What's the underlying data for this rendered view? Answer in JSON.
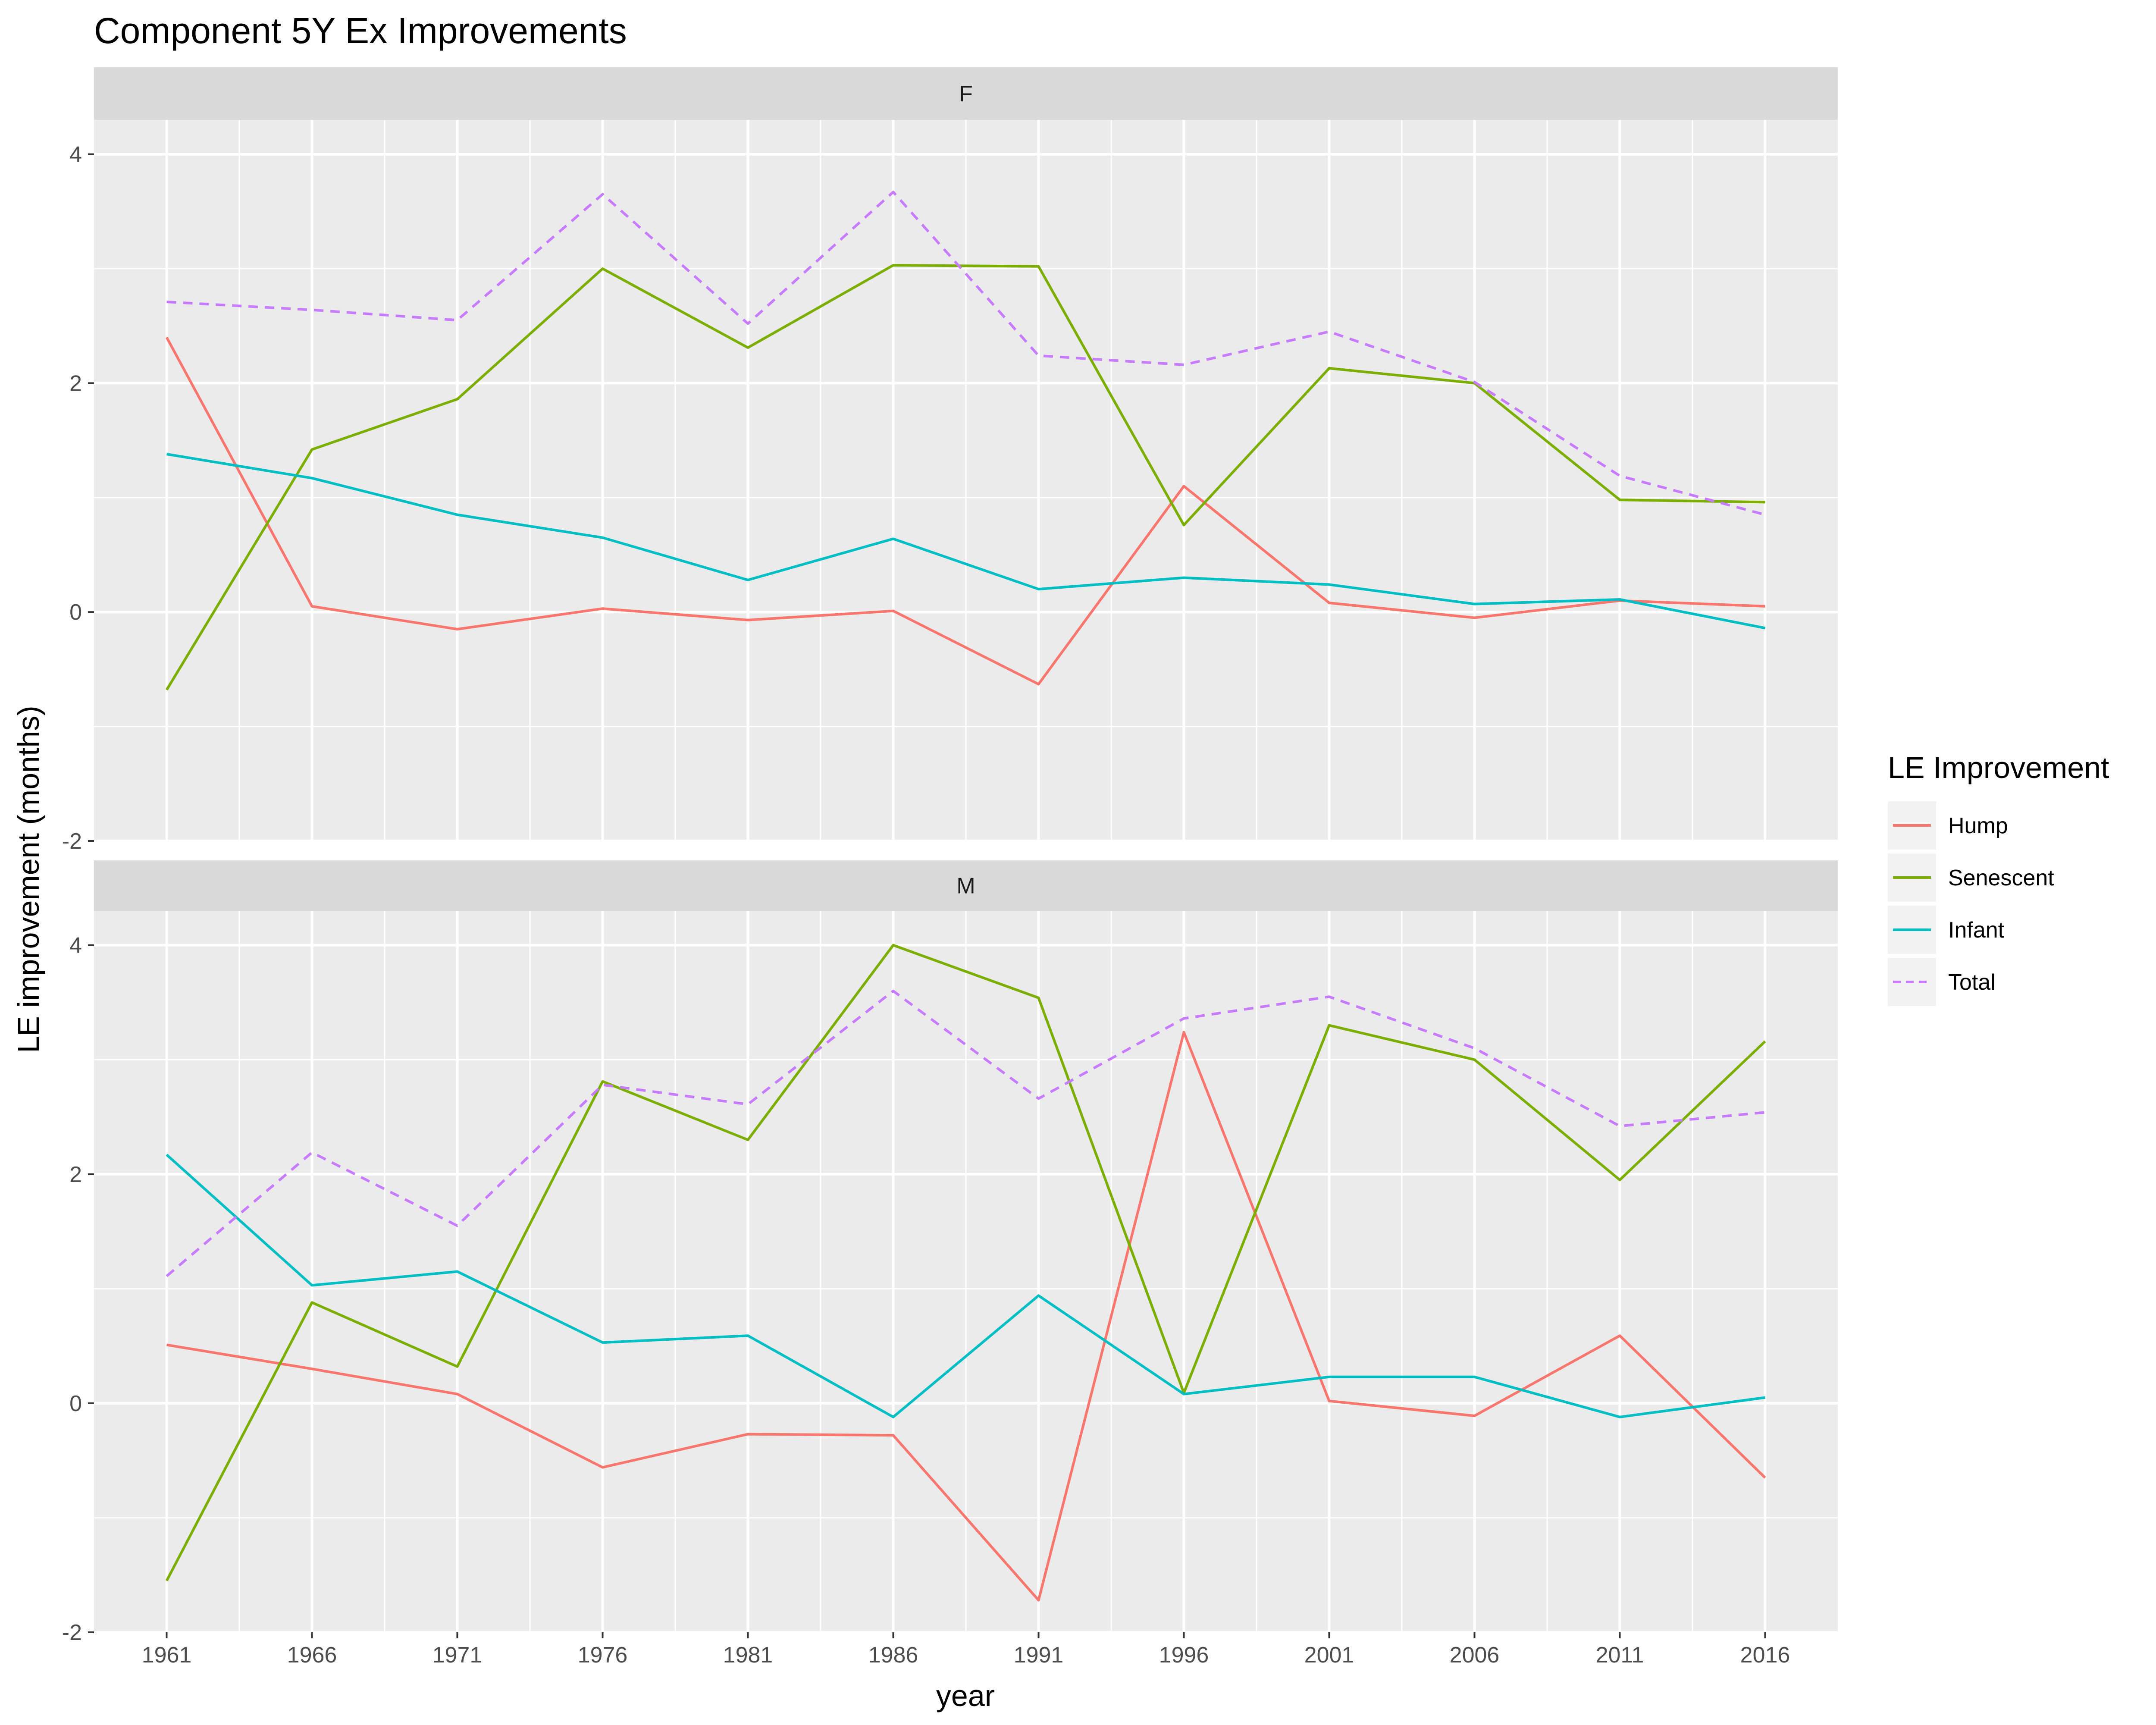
{
  "chart_data": {
    "type": "line",
    "title": "Component 5Y Ex Improvements",
    "xlabel": "year",
    "ylabel": "LE improvement (months)",
    "x": [
      1961,
      1966,
      1971,
      1976,
      1981,
      1986,
      1991,
      1996,
      2001,
      2006,
      2011,
      2016
    ],
    "x_ticks": [
      "1961",
      "1966",
      "1971",
      "1976",
      "1981",
      "1986",
      "1991",
      "1996",
      "2001",
      "2006",
      "2011",
      "2016"
    ],
    "xlim": [
      1958.5,
      2018.5
    ],
    "ylim": [
      -2,
      4.3
    ],
    "y_ticks": [
      -2,
      0,
      2,
      4
    ],
    "y_tick_labels": [
      "-2",
      "0",
      "2",
      "4"
    ],
    "grid": true,
    "legend": {
      "title": "LE Improvement",
      "position": "right"
    },
    "series_styles": [
      {
        "name": "Hump",
        "color": "#F8766D",
        "dashed": false
      },
      {
        "name": "Senescent",
        "color": "#7CAE00",
        "dashed": false
      },
      {
        "name": "Infant",
        "color": "#00BFC4",
        "dashed": false
      },
      {
        "name": "Total",
        "color": "#C77CFF",
        "dashed": true
      }
    ],
    "facets": [
      {
        "label": "F",
        "series": [
          {
            "name": "Hump",
            "values": [
              2.4,
              0.05,
              -0.15,
              0.03,
              -0.07,
              0.01,
              -0.63,
              1.1,
              0.08,
              -0.05,
              0.1,
              0.05
            ]
          },
          {
            "name": "Senescent",
            "values": [
              -0.68,
              1.42,
              1.86,
              3.0,
              2.31,
              3.03,
              3.02,
              0.76,
              2.13,
              2.0,
              0.98,
              0.96
            ]
          },
          {
            "name": "Infant",
            "values": [
              1.38,
              1.17,
              0.85,
              0.65,
              0.28,
              0.64,
              0.2,
              0.3,
              0.24,
              0.07,
              0.11,
              -0.14
            ]
          },
          {
            "name": "Total",
            "values": [
              2.71,
              2.64,
              2.55,
              3.65,
              2.52,
              3.67,
              2.24,
              2.16,
              2.45,
              2.01,
              1.19,
              0.85
            ]
          }
        ]
      },
      {
        "label": "M",
        "series": [
          {
            "name": "Hump",
            "values": [
              0.51,
              0.3,
              0.08,
              -0.56,
              -0.27,
              -0.28,
              -1.72,
              3.24,
              0.02,
              -0.11,
              0.59,
              -0.65
            ]
          },
          {
            "name": "Senescent",
            "values": [
              -1.55,
              0.88,
              0.32,
              2.81,
              2.3,
              4.0,
              3.54,
              0.09,
              3.3,
              3.0,
              1.95,
              3.16
            ]
          },
          {
            "name": "Infant",
            "values": [
              2.17,
              1.03,
              1.15,
              0.53,
              0.59,
              -0.12,
              0.94,
              0.08,
              0.23,
              0.23,
              -0.12,
              0.05
            ]
          },
          {
            "name": "Total",
            "values": [
              1.11,
              2.19,
              1.55,
              2.78,
              2.61,
              3.6,
              2.66,
              3.36,
              3.55,
              3.1,
              2.42,
              2.54
            ]
          }
        ]
      }
    ]
  }
}
